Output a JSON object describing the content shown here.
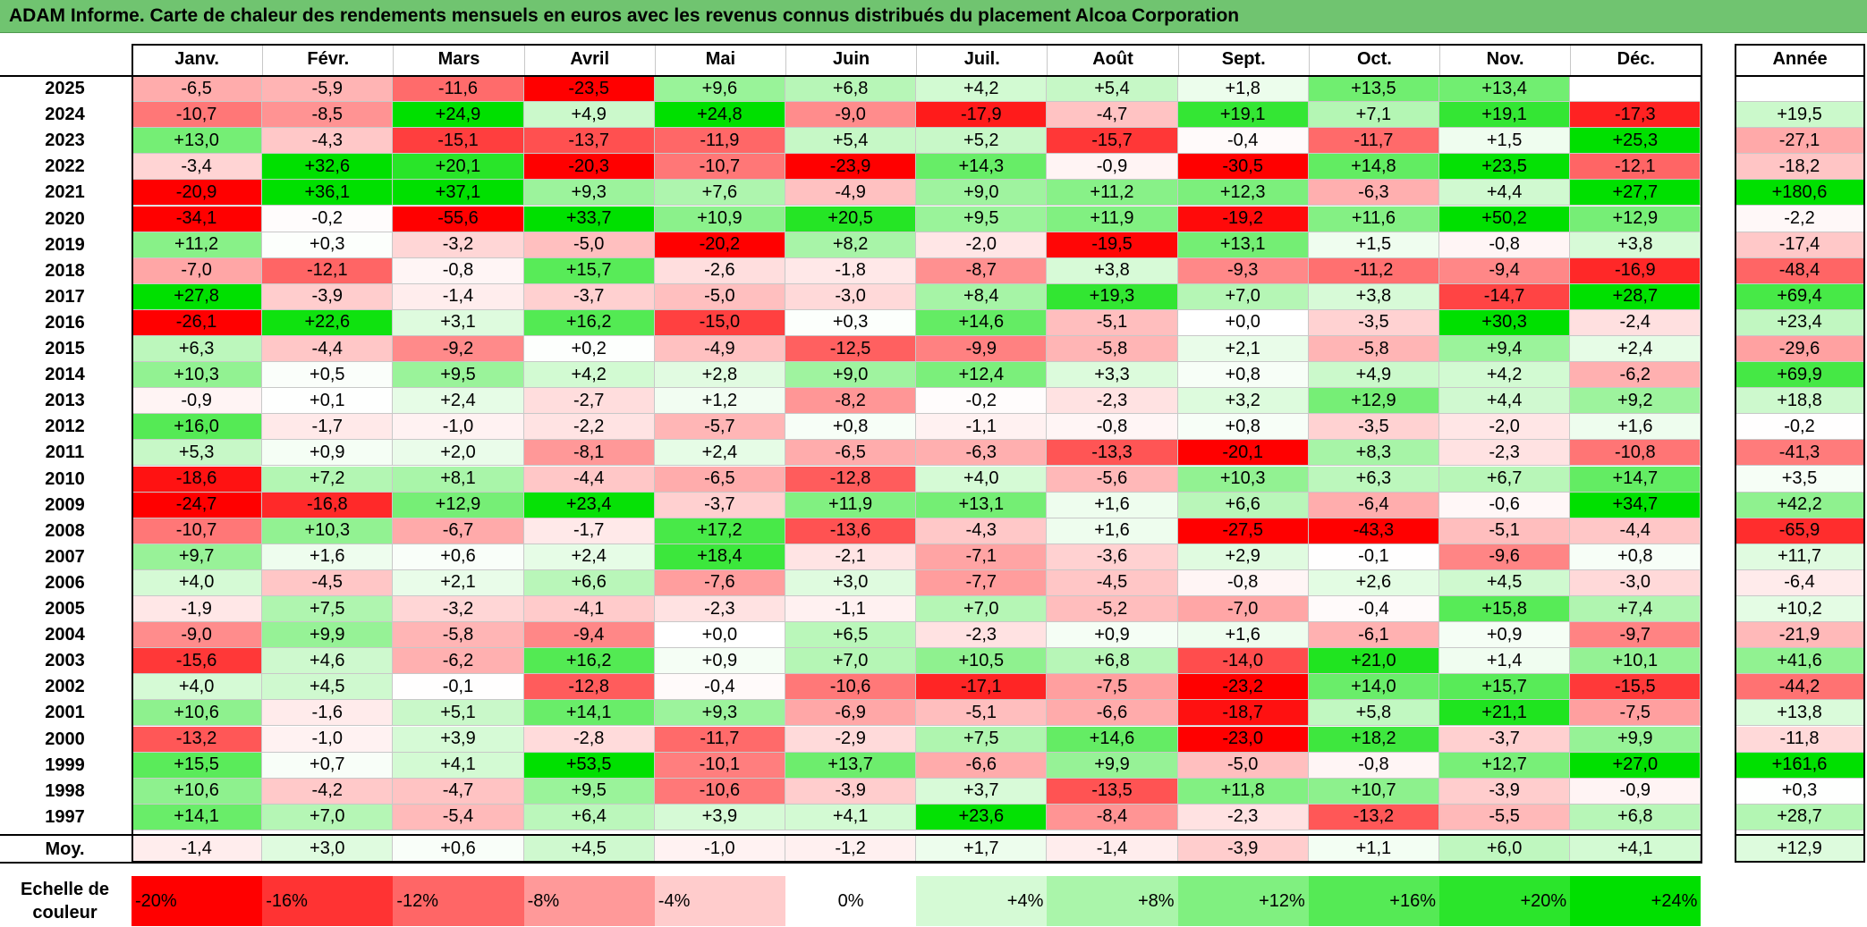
{
  "title": "ADAM Informe. Carte de chaleur des rendements mensuels en euros avec les revenus connus distribués du placement Alcoa Corporation",
  "chart_data": {
    "type": "heatmap",
    "columns": [
      "Janv.",
      "Févr.",
      "Mars",
      "Avril",
      "Mai",
      "Juin",
      "Juil.",
      "Août",
      "Sept.",
      "Oct.",
      "Nov.",
      "Déc."
    ],
    "year_header": "Année",
    "rows": [
      {
        "year": "2025",
        "values": [
          "-6,5",
          "-5,9",
          "-11,6",
          "-23,5",
          "+9,6",
          "+6,8",
          "+4,2",
          "+5,4",
          "+1,8",
          "+13,5",
          "+13,4",
          ""
        ],
        "annual": ""
      },
      {
        "year": "2024",
        "values": [
          "-10,7",
          "-8,5",
          "+24,9",
          "+4,9",
          "+24,8",
          "-9,0",
          "-17,9",
          "-4,7",
          "+19,1",
          "+7,1",
          "+19,1",
          "-17,3"
        ],
        "annual": "+19,5"
      },
      {
        "year": "2023",
        "values": [
          "+13,0",
          "-4,3",
          "-15,1",
          "-13,7",
          "-11,9",
          "+5,4",
          "+5,2",
          "-15,7",
          "-0,4",
          "-11,7",
          "+1,5",
          "+25,3"
        ],
        "annual": "-27,1"
      },
      {
        "year": "2022",
        "values": [
          "-3,4",
          "+32,6",
          "+20,1",
          "-20,3",
          "-10,7",
          "-23,9",
          "+14,3",
          "-0,9",
          "-30,5",
          "+14,8",
          "+23,5",
          "-12,1"
        ],
        "annual": "-18,2"
      },
      {
        "year": "2021",
        "values": [
          "-20,9",
          "+36,1",
          "+37,1",
          "+9,3",
          "+7,6",
          "-4,9",
          "+9,0",
          "+11,2",
          "+12,3",
          "-6,3",
          "+4,4",
          "+27,7"
        ],
        "annual": "+180,6"
      },
      {
        "year": "2020",
        "values": [
          "-34,1",
          "-0,2",
          "-55,6",
          "+33,7",
          "+10,9",
          "+20,5",
          "+9,5",
          "+11,9",
          "-19,2",
          "+11,6",
          "+50,2",
          "+12,9"
        ],
        "annual": "-2,2"
      },
      {
        "year": "2019",
        "values": [
          "+11,2",
          "+0,3",
          "-3,2",
          "-5,0",
          "-20,2",
          "+8,2",
          "-2,0",
          "-19,5",
          "+13,1",
          "+1,5",
          "-0,8",
          "+3,8"
        ],
        "annual": "-17,4"
      },
      {
        "year": "2018",
        "values": [
          "-7,0",
          "-12,1",
          "-0,8",
          "+15,7",
          "-2,6",
          "-1,8",
          "-8,7",
          "+3,8",
          "-9,3",
          "-11,2",
          "-9,4",
          "-16,9"
        ],
        "annual": "-48,4"
      },
      {
        "year": "2017",
        "values": [
          "+27,8",
          "-3,9",
          "-1,4",
          "-3,7",
          "-5,0",
          "-3,0",
          "+8,4",
          "+19,3",
          "+7,0",
          "+3,8",
          "-14,7",
          "+28,7"
        ],
        "annual": "+69,4"
      },
      {
        "year": "2016",
        "values": [
          "-26,1",
          "+22,6",
          "+3,1",
          "+16,2",
          "-15,0",
          "+0,3",
          "+14,6",
          "-5,1",
          "+0,0",
          "-3,5",
          "+30,3",
          "-2,4"
        ],
        "annual": "+23,4"
      },
      {
        "year": "2015",
        "values": [
          "+6,3",
          "-4,4",
          "-9,2",
          "+0,2",
          "-4,9",
          "-12,5",
          "-9,9",
          "-5,8",
          "+2,1",
          "-5,8",
          "+9,4",
          "+2,4"
        ],
        "annual": "-29,6"
      },
      {
        "year": "2014",
        "values": [
          "+10,3",
          "+0,5",
          "+9,5",
          "+4,2",
          "+2,8",
          "+9,0",
          "+12,4",
          "+3,3",
          "+0,8",
          "+4,9",
          "+4,2",
          "-6,2"
        ],
        "annual": "+69,9"
      },
      {
        "year": "2013",
        "values": [
          "-0,9",
          "+0,1",
          "+2,4",
          "-2,7",
          "+1,2",
          "-8,2",
          "-0,2",
          "-2,3",
          "+3,2",
          "+12,9",
          "+4,4",
          "+9,2"
        ],
        "annual": "+18,8"
      },
      {
        "year": "2012",
        "values": [
          "+16,0",
          "-1,7",
          "-1,0",
          "-2,2",
          "-5,7",
          "+0,8",
          "-1,1",
          "-0,8",
          "+0,8",
          "-3,5",
          "-2,0",
          "+1,6"
        ],
        "annual": "-0,2"
      },
      {
        "year": "2011",
        "values": [
          "+5,3",
          "+0,9",
          "+2,0",
          "-8,1",
          "+2,4",
          "-6,5",
          "-6,3",
          "-13,3",
          "-20,1",
          "+8,3",
          "-2,3",
          "-10,8"
        ],
        "annual": "-41,3"
      },
      {
        "year": "2010",
        "values": [
          "-18,6",
          "+7,2",
          "+8,1",
          "-4,4",
          "-6,5",
          "-12,8",
          "+4,0",
          "-5,6",
          "+10,3",
          "+6,3",
          "+6,7",
          "+14,7"
        ],
        "annual": "+3,5"
      },
      {
        "year": "2009",
        "values": [
          "-24,7",
          "-16,8",
          "+12,9",
          "+23,4",
          "-3,7",
          "+11,9",
          "+13,1",
          "+1,6",
          "+6,6",
          "-6,4",
          "-0,6",
          "+34,7"
        ],
        "annual": "+42,2"
      },
      {
        "year": "2008",
        "values": [
          "-10,7",
          "+10,3",
          "-6,7",
          "-1,7",
          "+17,2",
          "-13,6",
          "-4,3",
          "+1,6",
          "-27,5",
          "-43,3",
          "-5,1",
          "-4,4"
        ],
        "annual": "-65,9"
      },
      {
        "year": "2007",
        "values": [
          "+9,7",
          "+1,6",
          "+0,6",
          "+2,4",
          "+18,4",
          "-2,1",
          "-7,1",
          "-3,6",
          "+2,9",
          "-0,1",
          "-9,6",
          "+0,8"
        ],
        "annual": "+11,7"
      },
      {
        "year": "2006",
        "values": [
          "+4,0",
          "-4,5",
          "+2,1",
          "+6,6",
          "-7,6",
          "+3,0",
          "-7,7",
          "-4,5",
          "-0,8",
          "+2,6",
          "+4,5",
          "-3,0"
        ],
        "annual": "-6,4"
      },
      {
        "year": "2005",
        "values": [
          "-1,9",
          "+7,5",
          "-3,2",
          "-4,1",
          "-2,3",
          "-1,1",
          "+7,0",
          "-5,2",
          "-7,0",
          "-0,4",
          "+15,8",
          "+7,4"
        ],
        "annual": "+10,2"
      },
      {
        "year": "2004",
        "values": [
          "-9,0",
          "+9,9",
          "-5,8",
          "-9,4",
          "+0,0",
          "+6,5",
          "-2,3",
          "+0,9",
          "+1,6",
          "-6,1",
          "+0,9",
          "-9,7"
        ],
        "annual": "-21,9"
      },
      {
        "year": "2003",
        "values": [
          "-15,6",
          "+4,6",
          "-6,2",
          "+16,2",
          "+0,9",
          "+7,0",
          "+10,5",
          "+6,8",
          "-14,0",
          "+21,0",
          "+1,4",
          "+10,1"
        ],
        "annual": "+41,6"
      },
      {
        "year": "2002",
        "values": [
          "+4,0",
          "+4,5",
          "-0,1",
          "-12,8",
          "-0,4",
          "-10,6",
          "-17,1",
          "-7,5",
          "-23,2",
          "+14,0",
          "+15,7",
          "-15,5"
        ],
        "annual": "-44,2"
      },
      {
        "year": "2001",
        "values": [
          "+10,6",
          "-1,6",
          "+5,1",
          "+14,1",
          "+9,3",
          "-6,9",
          "-5,1",
          "-6,6",
          "-18,7",
          "+5,8",
          "+21,1",
          "-7,5"
        ],
        "annual": "+13,8"
      },
      {
        "year": "2000",
        "values": [
          "-13,2",
          "-1,0",
          "+3,9",
          "-2,8",
          "-11,7",
          "-2,9",
          "+7,5",
          "+14,6",
          "-23,0",
          "+18,2",
          "-3,7",
          "+9,9"
        ],
        "annual": "-11,8"
      },
      {
        "year": "1999",
        "values": [
          "+15,5",
          "+0,7",
          "+4,1",
          "+53,5",
          "-10,1",
          "+13,7",
          "-6,6",
          "+9,9",
          "-5,0",
          "-0,8",
          "+12,7",
          "+27,0"
        ],
        "annual": "+161,6"
      },
      {
        "year": "1998",
        "values": [
          "+10,6",
          "-4,2",
          "-4,7",
          "+9,5",
          "-10,6",
          "-3,9",
          "+3,7",
          "-13,5",
          "+11,8",
          "+10,7",
          "-3,9",
          "-0,9"
        ],
        "annual": "+0,3"
      },
      {
        "year": "1997",
        "values": [
          "+14,1",
          "+7,0",
          "-5,4",
          "+6,4",
          "+3,9",
          "+4,1",
          "+23,6",
          "-8,4",
          "-2,3",
          "-13,2",
          "-5,5",
          "+6,8"
        ],
        "annual": "+28,7"
      }
    ],
    "average": {
      "label": "Moy.",
      "values": [
        "-1,4",
        "+3,0",
        "+0,6",
        "+4,5",
        "-1,0",
        "-1,2",
        "+1,7",
        "-1,4",
        "-3,9",
        "+1,1",
        "+6,0",
        "+4,1"
      ],
      "annual": "+12,9"
    },
    "scale": {
      "label_line1": "Echelle de",
      "label_line2": "couleur",
      "steps": [
        "-20%",
        "-16%",
        "-12%",
        "-8%",
        "-4%",
        "0%",
        "+4%",
        "+8%",
        "+12%",
        "+16%",
        "+20%",
        "+24%"
      ]
    },
    "colors": {
      "negative": "#ff0000",
      "neutral": "#ffffff",
      "positive": "#00e000"
    }
  }
}
